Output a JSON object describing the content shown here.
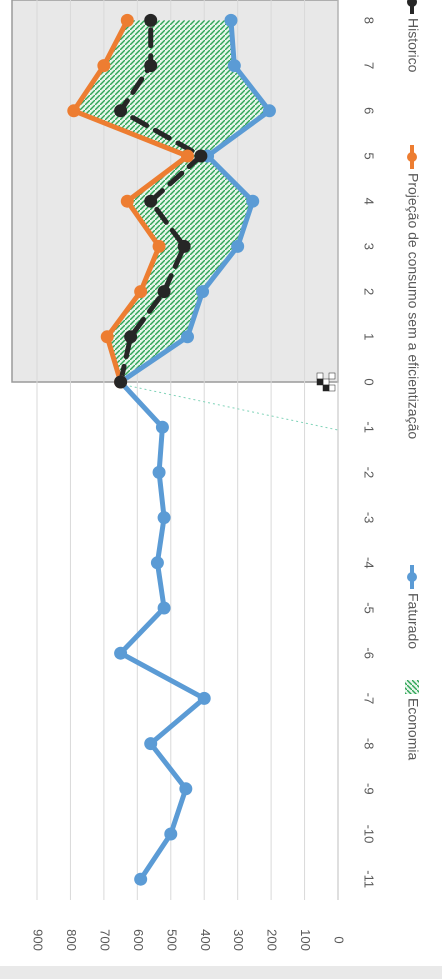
{
  "chart_data": {
    "type": "line",
    "orientation": "rotated-90-clockwise",
    "x": [
      -11,
      -10,
      -9,
      -8,
      -7,
      -6,
      -5,
      -4,
      -3,
      -2,
      -1,
      0,
      1,
      2,
      3,
      4,
      5,
      6,
      7,
      8
    ],
    "x_tick_labels": [
      "-11",
      "-10",
      "-9",
      "-8",
      "-7",
      "-6",
      "-5",
      "-4",
      "-3",
      "-2",
      "-1",
      "0",
      "1",
      "2",
      "3",
      "4",
      "5",
      "6",
      "7",
      "8"
    ],
    "y_tick_labels": [
      "0",
      "100",
      "200",
      "300",
      "400",
      "500",
      "600",
      "700",
      "800",
      "900"
    ],
    "ylim": [
      0,
      900
    ],
    "grid": true,
    "legend_position": "bottom",
    "projection_period_shaded": true,
    "series": [
      {
        "name": "Economia",
        "kind": "area-between",
        "upper_series": "Projeção de consumo sem a eficientização",
        "lower_series": "Faturado",
        "color": "#33a85a"
      },
      {
        "name": "Faturado",
        "color": "#5b9bd5",
        "points": [
          [
            -11,
            590
          ],
          [
            -10,
            500
          ],
          [
            -9,
            455
          ],
          [
            -8,
            560
          ],
          [
            -7,
            400
          ],
          [
            -6,
            650
          ],
          [
            -5,
            520
          ],
          [
            -4,
            540
          ],
          [
            -3,
            520
          ],
          [
            -2,
            535
          ],
          [
            -1,
            525
          ],
          [
            0,
            650
          ],
          [
            1,
            450
          ],
          [
            2,
            405
          ],
          [
            3,
            300
          ],
          [
            4,
            255
          ],
          [
            5,
            390
          ],
          [
            6,
            205
          ],
          [
            7,
            310
          ],
          [
            8,
            320
          ]
        ]
      },
      {
        "name": "Projeção de consumo sem a eficientização",
        "color": "#ed7d31",
        "points": [
          [
            0,
            650
          ],
          [
            1,
            690
          ],
          [
            2,
            590
          ],
          [
            3,
            535
          ],
          [
            4,
            630
          ],
          [
            5,
            450
          ],
          [
            6,
            790
          ],
          [
            7,
            700
          ],
          [
            8,
            630
          ]
        ]
      },
      {
        "name": "Historico",
        "color": "#262626",
        "dashed": true,
        "points": [
          [
            0,
            650
          ],
          [
            1,
            620
          ],
          [
            2,
            520
          ],
          [
            3,
            460
          ],
          [
            4,
            560
          ],
          [
            5,
            410
          ],
          [
            6,
            650
          ],
          [
            7,
            560
          ],
          [
            8,
            560
          ]
        ]
      }
    ]
  }
}
